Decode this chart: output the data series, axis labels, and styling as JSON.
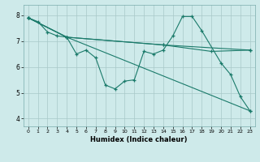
{
  "xlabel": "Humidex (Indice chaleur)",
  "bg_color": "#ceeaea",
  "line_color": "#1a7a6a",
  "grid_color": "#a8c8c8",
  "xlim": [
    -0.5,
    23.5
  ],
  "ylim": [
    3.7,
    8.4
  ],
  "xticks": [
    0,
    1,
    2,
    3,
    4,
    5,
    6,
    7,
    8,
    9,
    10,
    11,
    12,
    13,
    14,
    15,
    16,
    17,
    18,
    19,
    20,
    21,
    22,
    23
  ],
  "yticks": [
    4,
    5,
    6,
    7,
    8
  ],
  "series1": [
    [
      0,
      7.9
    ],
    [
      1,
      7.75
    ],
    [
      2,
      7.35
    ],
    [
      3,
      7.2
    ],
    [
      4,
      7.15
    ],
    [
      5,
      6.5
    ],
    [
      6,
      6.65
    ],
    [
      7,
      6.35
    ],
    [
      8,
      5.3
    ],
    [
      9,
      5.15
    ],
    [
      10,
      5.45
    ],
    [
      11,
      5.5
    ],
    [
      12,
      6.6
    ],
    [
      13,
      6.5
    ],
    [
      14,
      6.65
    ],
    [
      15,
      7.2
    ],
    [
      16,
      7.95
    ],
    [
      17,
      7.95
    ],
    [
      18,
      7.4
    ],
    [
      20,
      6.15
    ],
    [
      21,
      5.7
    ],
    [
      22,
      4.85
    ],
    [
      23,
      4.3
    ]
  ],
  "series2": [
    [
      0,
      7.9
    ],
    [
      4,
      7.15
    ],
    [
      23,
      4.3
    ]
  ],
  "series3": [
    [
      0,
      7.9
    ],
    [
      4,
      7.15
    ],
    [
      14,
      6.85
    ],
    [
      19,
      6.6
    ],
    [
      23,
      6.65
    ]
  ],
  "series4": [
    [
      0,
      7.9
    ],
    [
      4,
      7.15
    ],
    [
      14,
      6.85
    ],
    [
      23,
      6.65
    ]
  ]
}
